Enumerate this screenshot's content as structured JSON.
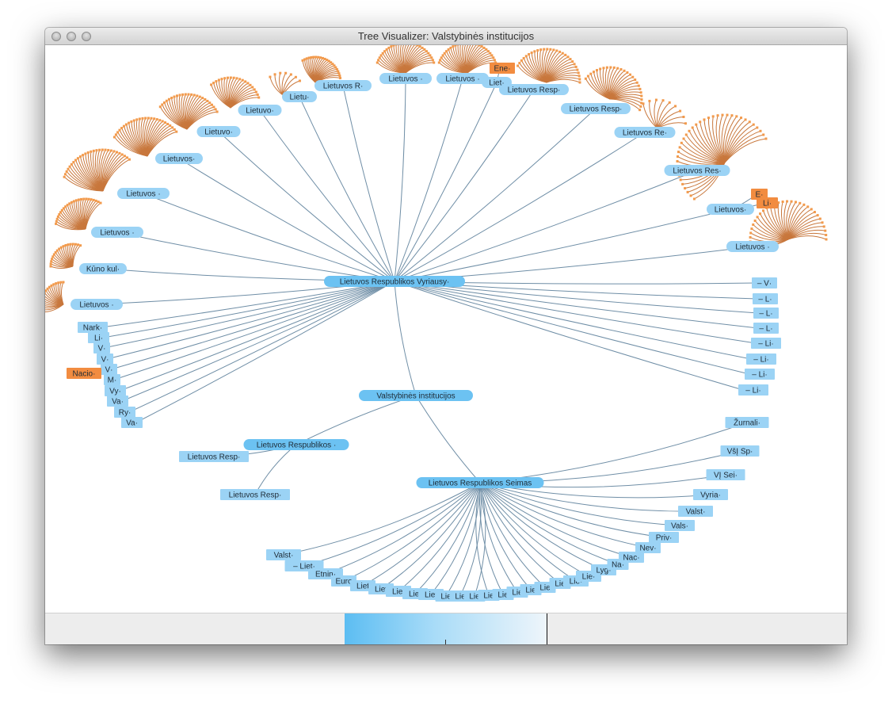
{
  "window": {
    "title": "Tree Visualizer: Valstybinės institucijos"
  },
  "colors": {
    "edge": "#6f8ea6",
    "node_fill": "#9bd3f5",
    "selected_fill": "#6cc2f2",
    "leaf_fan": "#c8773c",
    "leaf_end": "#f29a4c",
    "highlight": "#f28c40"
  },
  "tree": {
    "root": "Valstybinės institucijos",
    "government": "Lietuvos Respublikos Vyriausy·",
    "seimas": "Lietuvos Respublikos Seimas",
    "president": "Lietuvos Respublikos ·",
    "president_children": [
      "Lietuvos Resp·",
      "Lietuvos Resp·"
    ],
    "government_children": [
      "Lietuvos ·",
      "Kūno kul·",
      "Lietuvos ·",
      "Lietuvos ·",
      "Lietuvos·",
      "Lietuvo·",
      "Lietuvo·",
      "Lietu·",
      "Lietuvos R·",
      "Lietuvos ·",
      "Lietuvos ·",
      "Liet·",
      "Lietuvos Resp·",
      "Lietuvos Resp·",
      "Lietuvos Re·",
      "Lietuvos Res·",
      "Lietuvos·",
      "Lietuvos ·"
    ],
    "government_left_leaves": [
      "Nark·",
      "Li·",
      "V·",
      "V·",
      "V·",
      "M·",
      "Vy·",
      "Va·",
      "Ry·",
      "Va·"
    ],
    "government_left_highlight": "Nacio·",
    "government_right_leaves": [
      "– V·",
      "– L·",
      "– L·",
      "– L·",
      "– Li·",
      "– Li·",
      "– Li·",
      "– Li·"
    ],
    "highlight_top": "Ene·",
    "highlight_right": [
      "E·",
      "Li·"
    ],
    "seimas_children": [
      "Valst·",
      "– Liet·",
      "Etnin·",
      "Euro",
      "Liet",
      "Liet",
      "Liet",
      "Liet",
      "Liet",
      "Lie",
      "Lie",
      "Lie",
      "Lie",
      "Lie",
      "Lie",
      "Lie",
      "Lie",
      "Lie",
      "Lie·",
      "Lie·",
      "Lyg·",
      "Na·",
      "Nac·",
      "Nev·",
      "Priv·",
      "Vals·",
      "Valst·",
      "Vyria·",
      "VĮ Sei·",
      "VšĮ Sp·",
      "Žurnali·"
    ]
  }
}
